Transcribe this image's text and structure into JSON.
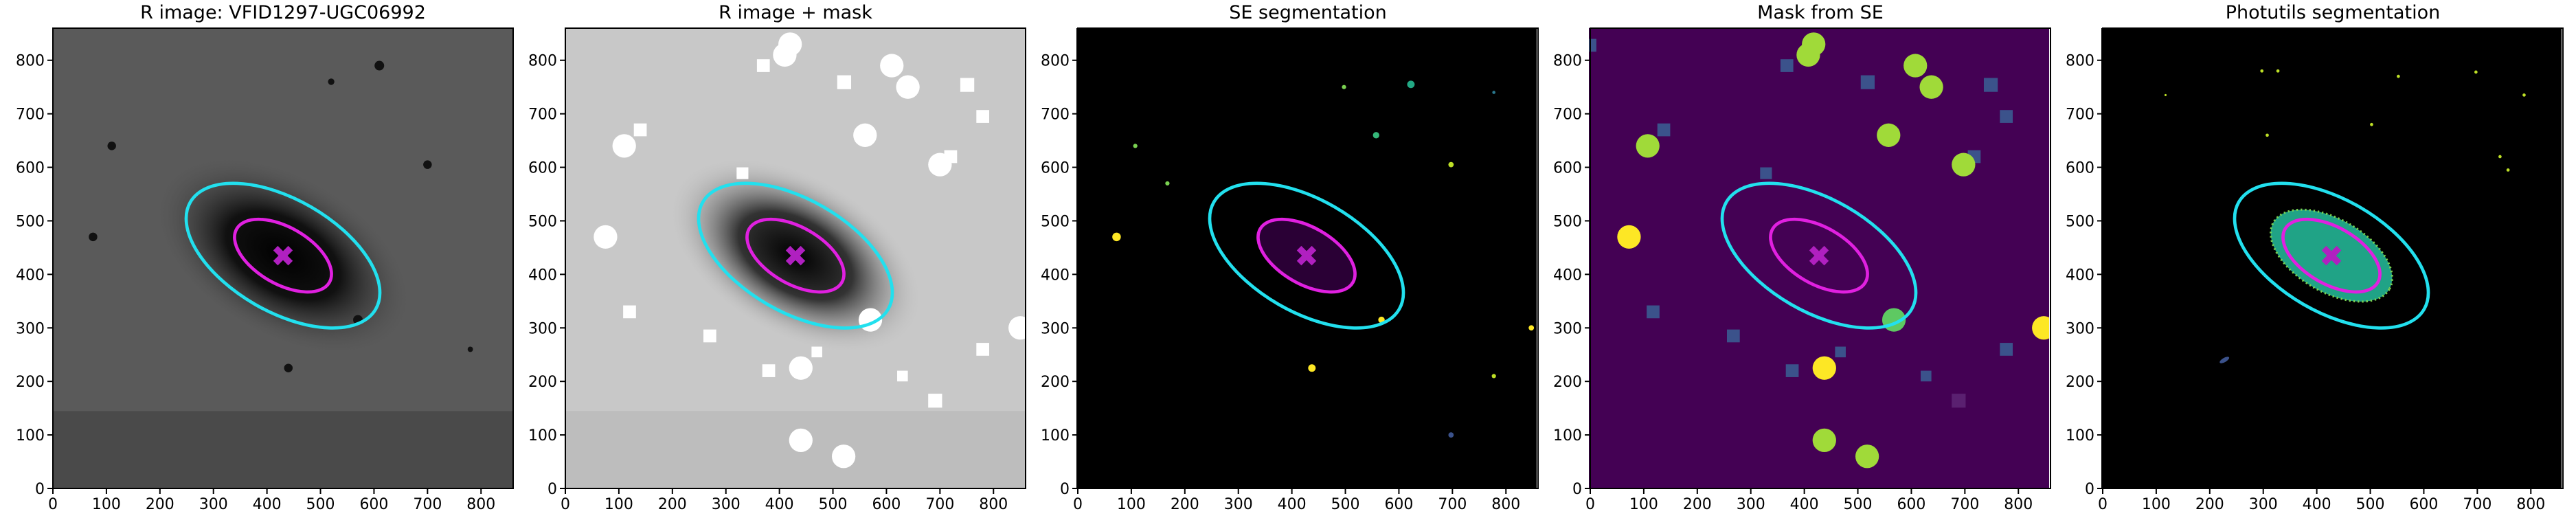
{
  "chart_data": [
    {
      "type": "image",
      "title": "R image: VFID1297-UGC06992",
      "xlim": [
        0,
        860
      ],
      "ylim": [
        0,
        860
      ],
      "xticks": [
        0,
        100,
        200,
        300,
        400,
        500,
        600,
        700,
        800
      ],
      "yticks": [
        0,
        100,
        200,
        300,
        400,
        500,
        600,
        700,
        800
      ]
    },
    {
      "type": "image",
      "title": "R image + mask",
      "xlim": [
        0,
        860
      ],
      "ylim": [
        0,
        860
      ],
      "xticks": [
        0,
        100,
        200,
        300,
        400,
        500,
        600,
        700,
        800
      ],
      "yticks": [
        0,
        100,
        200,
        300,
        400,
        500,
        600,
        700,
        800
      ]
    },
    {
      "type": "image",
      "title": "SE segmentation",
      "xlim": [
        0,
        860
      ],
      "ylim": [
        0,
        860
      ],
      "xticks": [
        0,
        100,
        200,
        300,
        400,
        500,
        600,
        700,
        800
      ],
      "yticks": [
        0,
        100,
        200,
        300,
        400,
        500,
        600,
        700,
        800
      ]
    },
    {
      "type": "image",
      "title": "Mask from SE",
      "xlim": [
        0,
        860
      ],
      "ylim": [
        0,
        860
      ],
      "xticks": [
        0,
        100,
        200,
        300,
        400,
        500,
        600,
        700,
        800
      ],
      "yticks": [
        0,
        100,
        200,
        300,
        400,
        500,
        600,
        700,
        800
      ]
    },
    {
      "type": "image",
      "title": "Photutils segmentation",
      "xlim": [
        0,
        860
      ],
      "ylim": [
        0,
        860
      ],
      "xticks": [
        0,
        100,
        200,
        300,
        400,
        500,
        600,
        700,
        800
      ],
      "yticks": [
        0,
        100,
        200,
        300,
        400,
        500,
        600,
        700,
        800
      ]
    }
  ]
}
